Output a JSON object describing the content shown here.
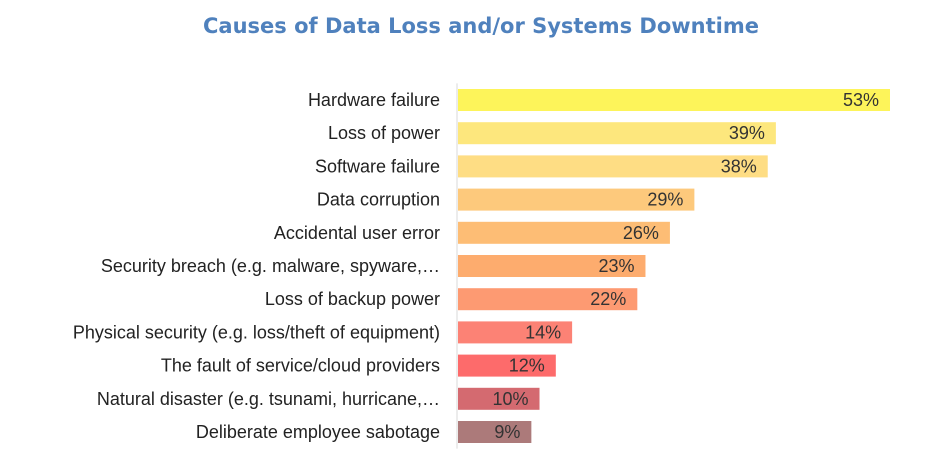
{
  "chart_data": {
    "type": "bar",
    "orientation": "horizontal",
    "title": "Causes of Data Loss and/or Systems Downtime",
    "categories": [
      "Hardware failure",
      "Loss of power",
      "Software failure",
      "Data corruption",
      "Accidental user error",
      "Security breach (e.g. malware, spyware,…",
      "Loss of backup power",
      "Physical security (e.g. loss/theft of equipment)",
      "The fault of service/cloud providers",
      "Natural disaster (e.g. tsunami, hurricane,…",
      "Deliberate employee sabotage"
    ],
    "values": [
      53,
      39,
      38,
      29,
      26,
      23,
      22,
      14,
      12,
      10,
      9
    ],
    "data_labels": [
      "53%",
      "39%",
      "38%",
      "29%",
      "26%",
      "23%",
      "22%",
      "14%",
      "12%",
      "10%",
      "9%"
    ],
    "unit": "%",
    "bar_colors": [
      "#fdf45a",
      "#fde77d",
      "#fedd84",
      "#fdc97c",
      "#fdbd75",
      "#fdac6e",
      "#fd9a72",
      "#fc8275",
      "#fd6b6b",
      "#d46a70",
      "#ac7a7a"
    ],
    "xlim": [
      0,
      53
    ],
    "grid": false,
    "legend": "none",
    "axis_line_color": "#d9d9d9",
    "title_color": "#4f81bd"
  }
}
